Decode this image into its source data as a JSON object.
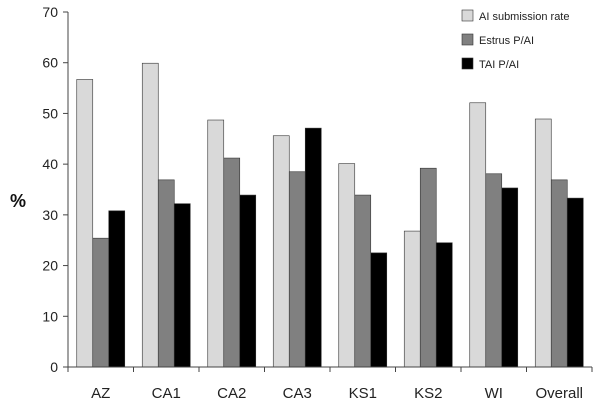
{
  "chart_data": {
    "type": "bar",
    "title": "",
    "xlabel": "",
    "ylabel": "%",
    "ylim": [
      0,
      70
    ],
    "yticks": [
      0,
      10,
      20,
      30,
      40,
      50,
      60,
      70
    ],
    "grid": false,
    "legend_position": "top-right",
    "categories": [
      "AZ",
      "CA1",
      "CA2",
      "CA3",
      "KS1",
      "KS2",
      "WI",
      "Overall"
    ],
    "series": [
      {
        "name": "AI submission rate",
        "color": "#d9d9d9",
        "values": [
          56.7,
          59.9,
          48.7,
          45.6,
          40.1,
          26.8,
          52.1,
          48.9
        ]
      },
      {
        "name": "Estrus P/AI",
        "color": "#808080",
        "values": [
          25.4,
          36.9,
          41.2,
          38.5,
          33.9,
          39.2,
          38.1,
          36.9
        ]
      },
      {
        "name": "TAI P/AI",
        "color": "#000000",
        "values": [
          30.8,
          32.2,
          33.9,
          47.1,
          22.5,
          24.5,
          35.3,
          33.3
        ]
      }
    ]
  }
}
